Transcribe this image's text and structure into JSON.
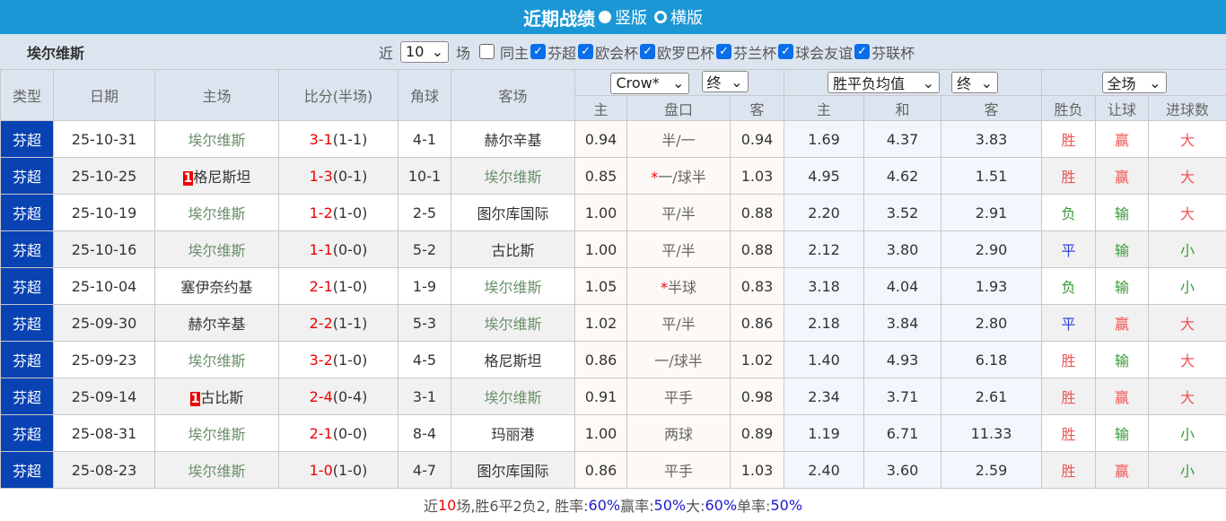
{
  "title": {
    "main": "近期战绩",
    "opt1": "竖版",
    "opt2": "横版"
  },
  "filter": {
    "team": "埃尔维斯",
    "near": "近",
    "count": "10",
    "games": "场",
    "same_home": "同主",
    "leagues": [
      "芬超",
      "欧会杯",
      "欧罗巴杯",
      "芬兰杯",
      "球会友谊",
      "芬联杯"
    ]
  },
  "header": {
    "type": "类型",
    "date": "日期",
    "home": "主场",
    "score": "比分(半场)",
    "corner": "角球",
    "away": "客场",
    "company": "Crow*",
    "final1": "终",
    "avg": "胜平负均值",
    "final2": "终",
    "period": "全场",
    "sub": [
      "主",
      "盘口",
      "客",
      "主",
      "和",
      "客",
      "胜负",
      "让球",
      "进球数"
    ]
  },
  "rows": [
    {
      "type": "芬超",
      "date": "25-10-31",
      "home": "埃尔维斯",
      "home_badge": "",
      "score": "3-1",
      "half": "(1-1)",
      "corner": "4-1",
      "away": "赫尔辛基",
      "ah": "0.94",
      "line_star": "",
      "line": "半/一",
      "aa": "0.94",
      "eh": "1.69",
      "ed": "4.37",
      "ea": "3.83",
      "res": "胜",
      "hc": "赢",
      "ou": "大"
    },
    {
      "type": "芬超",
      "date": "25-10-25",
      "home": "格尼斯坦",
      "home_badge": "1",
      "score": "1-3",
      "half": "(0-1)",
      "corner": "10-1",
      "away": "埃尔维斯",
      "ah": "0.85",
      "line_star": "*",
      "line": "一/球半",
      "aa": "1.03",
      "eh": "4.95",
      "ed": "4.62",
      "ea": "1.51",
      "res": "胜",
      "hc": "赢",
      "ou": "大"
    },
    {
      "type": "芬超",
      "date": "25-10-19",
      "home": "埃尔维斯",
      "home_badge": "",
      "score": "1-2",
      "half": "(1-0)",
      "corner": "2-5",
      "away": "图尔库国际",
      "ah": "1.00",
      "line_star": "",
      "line": "平/半",
      "aa": "0.88",
      "eh": "2.20",
      "ed": "3.52",
      "ea": "2.91",
      "res": "负",
      "hc": "输",
      "ou": "大"
    },
    {
      "type": "芬超",
      "date": "25-10-16",
      "home": "埃尔维斯",
      "home_badge": "",
      "score": "1-1",
      "half": "(0-0)",
      "corner": "5-2",
      "away": "古比斯",
      "ah": "1.00",
      "line_star": "",
      "line": "平/半",
      "aa": "0.88",
      "eh": "2.12",
      "ed": "3.80",
      "ea": "2.90",
      "res": "平",
      "hc": "输",
      "ou": "小"
    },
    {
      "type": "芬超",
      "date": "25-10-04",
      "home": "塞伊奈约基",
      "home_badge": "",
      "score": "2-1",
      "half": "(1-0)",
      "corner": "1-9",
      "away": "埃尔维斯",
      "ah": "1.05",
      "line_star": "*",
      "line": "半球",
      "aa": "0.83",
      "eh": "3.18",
      "ed": "4.04",
      "ea": "1.93",
      "res": "负",
      "hc": "输",
      "ou": "小"
    },
    {
      "type": "芬超",
      "date": "25-09-30",
      "home": "赫尔辛基",
      "home_badge": "",
      "score": "2-2",
      "half": "(1-1)",
      "corner": "5-3",
      "away": "埃尔维斯",
      "ah": "1.02",
      "line_star": "",
      "line": "平/半",
      "aa": "0.86",
      "eh": "2.18",
      "ed": "3.84",
      "ea": "2.80",
      "res": "平",
      "hc": "赢",
      "ou": "大"
    },
    {
      "type": "芬超",
      "date": "25-09-23",
      "home": "埃尔维斯",
      "home_badge": "",
      "score": "3-2",
      "half": "(1-0)",
      "corner": "4-5",
      "away": "格尼斯坦",
      "ah": "0.86",
      "line_star": "",
      "line": "一/球半",
      "aa": "1.02",
      "eh": "1.40",
      "ed": "4.93",
      "ea": "6.18",
      "res": "胜",
      "hc": "输",
      "ou": "大"
    },
    {
      "type": "芬超",
      "date": "25-09-14",
      "home": "古比斯",
      "home_badge": "1",
      "score": "2-4",
      "half": "(0-4)",
      "corner": "3-1",
      "away": "埃尔维斯",
      "ah": "0.91",
      "line_star": "",
      "line": "平手",
      "aa": "0.98",
      "eh": "2.34",
      "ed": "3.71",
      "ea": "2.61",
      "res": "胜",
      "hc": "赢",
      "ou": "大"
    },
    {
      "type": "芬超",
      "date": "25-08-31",
      "home": "埃尔维斯",
      "home_badge": "",
      "score": "2-1",
      "half": "(0-0)",
      "corner": "8-4",
      "away": "玛丽港",
      "ah": "1.00",
      "line_star": "",
      "line": "两球",
      "aa": "0.89",
      "eh": "1.19",
      "ed": "6.71",
      "ea": "11.33",
      "res": "胜",
      "hc": "输",
      "ou": "小"
    },
    {
      "type": "芬超",
      "date": "25-08-23",
      "home": "埃尔维斯",
      "home_badge": "",
      "score": "1-0",
      "half": "(1-0)",
      "corner": "4-7",
      "away": "图尔库国际",
      "ah": "0.86",
      "line_star": "",
      "line": "平手",
      "aa": "1.03",
      "eh": "2.40",
      "ed": "3.60",
      "ea": "2.59",
      "res": "胜",
      "hc": "赢",
      "ou": "小"
    }
  ],
  "footer": {
    "p1": "近",
    "n": "10",
    "p2": "场,胜6平2负2, 胜率:",
    "win": "60%",
    "p3": " 赢率:",
    "hcwin": "50%",
    "p4": " 大:",
    "big": "60%",
    "p5": " 单率:",
    "odd": "50%"
  },
  "colors": {
    "title_bg": "#1b97d5",
    "type_bg": "#0942b3",
    "win": "#e55555",
    "lose": "#3a9a3a",
    "draw": "#3344dd"
  }
}
